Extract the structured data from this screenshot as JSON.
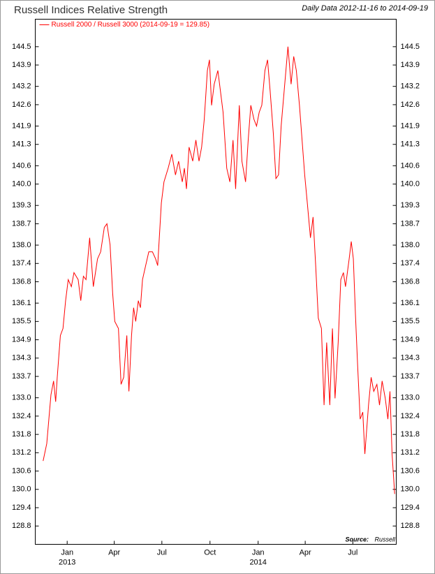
{
  "chart_data": {
    "type": "line",
    "title": "Russell Indices Relative Strength",
    "subtitle": "Daily Data 2012-11-16 to 2014-09-19",
    "source_label": "Source:",
    "source": "Russell",
    "legend": "top-left",
    "xlim": [
      "2012-11-01",
      "2014-09-22"
    ],
    "ylim": [
      128.2,
      145.4
    ],
    "yticks": [
      128.8,
      129.4,
      {
        "value": 130,
        "label": "130.0"
      },
      130.6,
      131.2,
      131.8,
      132.4,
      {
        "value": 133,
        "label": "133.0"
      },
      133.7,
      134.3,
      134.9,
      135.5,
      136.1,
      136.8,
      137.4,
      {
        "value": 138,
        "label": "138.0"
      },
      138.7,
      139.3,
      {
        "value": 140,
        "label": "140.0"
      },
      140.6,
      141.3,
      141.9,
      142.6,
      143.2,
      143.9,
      144.5
    ],
    "xticks": [
      {
        "value": "2013-01-01",
        "label": "Jan"
      },
      {
        "value": "2013-04-01",
        "label": "Apr"
      },
      {
        "value": "2013-07-01",
        "label": "Jul"
      },
      {
        "value": "2013-10-01",
        "label": "Oct"
      },
      {
        "value": "2014-01-01",
        "label": "Jan"
      },
      {
        "value": "2014-04-01",
        "label": "Apr"
      },
      {
        "value": "2014-07-01",
        "label": "Jul"
      }
    ],
    "xtick_years": [
      {
        "value": "2013-01-01",
        "label": "2013"
      },
      {
        "value": "2014-01-01",
        "label": "2014"
      }
    ],
    "x": [
      "2012-11-16",
      "2012-11-23",
      "2012-11-27",
      "2012-12-01",
      "2012-12-06",
      "2012-12-10",
      "2012-12-13",
      "2012-12-19",
      "2012-12-24",
      "2012-12-29",
      "2013-01-03",
      "2013-01-09",
      "2013-01-14",
      "2013-01-22",
      "2013-01-27",
      "2013-02-01",
      "2013-02-06",
      "2013-02-13",
      "2013-02-20",
      "2013-02-28",
      "2013-03-06",
      "2013-03-13",
      "2013-03-18",
      "2013-03-24",
      "2013-03-29",
      "2013-04-02",
      "2013-04-09",
      "2013-04-14",
      "2013-04-19",
      "2013-04-25",
      "2013-04-29",
      "2013-05-04",
      "2013-05-08",
      "2013-05-12",
      "2013-05-17",
      "2013-05-21",
      "2013-05-25",
      "2013-05-31",
      "2013-06-06",
      "2013-06-13",
      "2013-06-19",
      "2013-06-23",
      "2013-06-30",
      "2013-07-05",
      "2013-07-13",
      "2013-07-20",
      "2013-07-27",
      "2013-08-02",
      "2013-08-09",
      "2013-08-13",
      "2013-08-17",
      "2013-08-22",
      "2013-08-29",
      "2013-09-04",
      "2013-09-10",
      "2013-09-15",
      "2013-09-20",
      "2013-09-26",
      "2013-09-30",
      "2013-10-04",
      "2013-10-09",
      "2013-10-16",
      "2013-10-21",
      "2013-10-26",
      "2013-11-02",
      "2013-11-08",
      "2013-11-14",
      "2013-11-19",
      "2013-11-26",
      "2013-12-01",
      "2013-12-08",
      "2013-12-13",
      "2013-12-18",
      "2013-12-24",
      "2013-12-29",
      "2014-01-03",
      "2014-01-08",
      "2014-01-14",
      "2014-01-19",
      "2014-01-24",
      "2014-01-30",
      "2014-02-04",
      "2014-02-09",
      "2014-02-14",
      "2014-02-22",
      "2014-02-27",
      "2014-03-05",
      "2014-03-10",
      "2014-03-15",
      "2014-03-21",
      "2014-03-26",
      "2014-03-31",
      "2014-04-05",
      "2014-04-11",
      "2014-04-16",
      "2014-04-21",
      "2014-04-26",
      "2014-05-02",
      "2014-05-07",
      "2014-05-12",
      "2014-05-18",
      "2014-05-23",
      "2014-05-28",
      "2014-06-03",
      "2014-06-08",
      "2014-06-13",
      "2014-06-17",
      "2014-06-24",
      "2014-06-28",
      "2014-07-02",
      "2014-07-06",
      "2014-07-10",
      "2014-07-15",
      "2014-07-20",
      "2014-07-24",
      "2014-07-31",
      "2014-08-05",
      "2014-08-10",
      "2014-08-16",
      "2014-08-21",
      "2014-08-26",
      "2014-09-01",
      "2014-09-06",
      "2014-09-10",
      "2014-09-14",
      "2014-09-19"
    ],
    "series": [
      {
        "name": "Russell 2000 / Russell 3000 (2014-09-19 = 129.85)",
        "color": "#ff0000",
        "values": [
          130.93,
          131.5,
          132.3,
          133.1,
          133.55,
          132.87,
          133.67,
          135.04,
          135.27,
          136.18,
          136.87,
          136.64,
          137.1,
          136.87,
          136.18,
          136.98,
          136.87,
          138.24,
          136.64,
          137.55,
          137.78,
          138.58,
          138.7,
          138.01,
          136.41,
          135.5,
          135.27,
          133.44,
          133.67,
          135.04,
          133.21,
          135.04,
          135.95,
          135.5,
          136.18,
          135.95,
          136.87,
          137.33,
          137.78,
          137.78,
          137.55,
          137.33,
          139.38,
          140.07,
          140.52,
          140.98,
          140.3,
          140.75,
          140.07,
          140.52,
          139.84,
          141.21,
          140.75,
          141.44,
          140.75,
          141.21,
          142.12,
          143.72,
          144.07,
          142.58,
          143.27,
          143.72,
          143.04,
          142.35,
          140.52,
          140.07,
          141.44,
          139.84,
          142.58,
          140.75,
          140.07,
          141.44,
          142.58,
          142.12,
          141.9,
          142.35,
          142.58,
          143.72,
          144.07,
          143.04,
          141.67,
          140.18,
          140.3,
          141.9,
          143.5,
          144.5,
          143.27,
          144.18,
          143.72,
          142.58,
          141.44,
          140.3,
          139.38,
          138.24,
          138.92,
          137.33,
          135.61,
          135.27,
          132.76,
          134.81,
          132.76,
          135.27,
          132.98,
          134.81,
          136.87,
          137.1,
          136.64,
          137.55,
          138.12,
          137.55,
          135.73,
          134.13,
          132.3,
          132.53,
          131.16,
          132.76,
          133.67,
          133.21,
          133.44,
          132.76,
          133.55,
          132.98,
          132.3,
          133.21,
          131.16,
          129.85
        ]
      }
    ]
  }
}
